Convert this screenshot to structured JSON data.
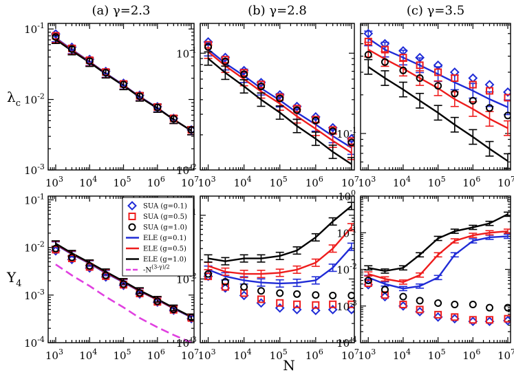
{
  "figure": {
    "x_label": "N",
    "row_labels": [
      {
        "main": "λ",
        "sub": "c"
      },
      {
        "main": "Y",
        "sub": "4"
      }
    ]
  },
  "colors": {
    "SUA (g=0.1)": "#1f2bd6",
    "SUA (g=0.5)": "#ee1c1c",
    "SUA (g=1.0)": "#000000",
    "ELE (g=0.1)": "#1f2bd6",
    "ELE (g=0.5)": "#ee1c1c",
    "ELE (g=1.0)": "#000000",
    "ref": "#e040e0"
  },
  "legend": [
    {
      "label": "SUA (g=0.1)",
      "kind": "diamond"
    },
    {
      "label": "SUA (g=0.5)",
      "kind": "square"
    },
    {
      "label": "SUA (g=1.0)",
      "kind": "circle"
    },
    {
      "label": "ELE (g=0.1)",
      "kind": "line"
    },
    {
      "label": "ELE (g=0.5)",
      "kind": "line"
    },
    {
      "label": "ELE (g=1.0)",
      "kind": "line"
    },
    {
      "label": "-N^{(3-γ)/2}",
      "kind": "dashed"
    }
  ],
  "chart_data": [
    {
      "id": "a-top",
      "type": "line",
      "title": "(a) γ=2.3",
      "xscale": "log",
      "yscale": "log",
      "xlim": [
        600,
        12000000
      ],
      "ylim": [
        0.001,
        0.12
      ],
      "xticks": [
        {
          "b": "10",
          "e": "3"
        },
        {
          "b": "10",
          "e": "4"
        },
        {
          "b": "10",
          "e": "5"
        },
        {
          "b": "10",
          "e": "6"
        },
        {
          "b": "10",
          "e": "7"
        }
      ],
      "yticks": [
        {
          "b": "10",
          "e": "-1"
        },
        {
          "b": "10",
          "e": "-2"
        },
        {
          "b": "10",
          "e": "-3"
        }
      ],
      "x": [
        1000,
        3000,
        10000,
        30000,
        100000,
        300000,
        1000000,
        3000000,
        10000000
      ],
      "series": [
        {
          "name": "SUA (g=0.1)",
          "marker": "diamond",
          "values": [
            0.085,
            0.055,
            0.037,
            0.025,
            0.017,
            0.0115,
            0.0079,
            0.0054,
            0.0037
          ]
        },
        {
          "name": "SUA (g=0.5)",
          "marker": "square",
          "values": [
            0.08,
            0.053,
            0.036,
            0.0245,
            0.0166,
            0.0113,
            0.0078,
            0.0054,
            0.0037
          ]
        },
        {
          "name": "SUA (g=1.0)",
          "marker": "circle",
          "values": [
            0.077,
            0.052,
            0.035,
            0.024,
            0.0163,
            0.0111,
            0.0077,
            0.0053,
            0.0037
          ]
        },
        {
          "name": "ELE (g=0.1)",
          "line": "solid",
          "values": [
            0.075,
            0.051,
            0.0345,
            0.0235,
            0.016,
            0.011,
            0.0076,
            0.0052,
            0.0036
          ]
        },
        {
          "name": "ELE (g=0.5)",
          "line": "solid",
          "values": [
            0.073,
            0.05,
            0.034,
            0.0232,
            0.0158,
            0.0109,
            0.0075,
            0.0052,
            0.0036
          ]
        },
        {
          "name": "ELE (g=1.0)",
          "line": "solid",
          "values": [
            0.071,
            0.049,
            0.0335,
            0.023,
            0.0157,
            0.0108,
            0.0075,
            0.0052,
            0.0036
          ]
        }
      ]
    },
    {
      "id": "b-top",
      "type": "line",
      "title": "(b) γ=2.8",
      "xscale": "log",
      "yscale": "log",
      "xlim": [
        600,
        12000000
      ],
      "ylim": [
        0.01,
        0.18
      ],
      "xticks": [
        {
          "b": "10",
          "e": "3"
        },
        {
          "b": "10",
          "e": "4"
        },
        {
          "b": "10",
          "e": "5"
        },
        {
          "b": "10",
          "e": "6"
        },
        {
          "b": "10",
          "e": "7"
        }
      ],
      "yticks": [
        {
          "b": "10",
          "e": "-1"
        },
        {
          "b": "10",
          "e": "-2"
        }
      ],
      "x": [
        1000,
        3000,
        10000,
        30000,
        100000,
        300000,
        1000000,
        3000000,
        10000000
      ],
      "series": [
        {
          "name": "SUA (g=0.1)",
          "marker": "diamond",
          "values": [
            0.125,
            0.092,
            0.071,
            0.056,
            0.044,
            0.035,
            0.0285,
            0.023,
            0.0185
          ]
        },
        {
          "name": "SUA (g=0.5)",
          "marker": "square",
          "values": [
            0.118,
            0.088,
            0.068,
            0.054,
            0.042,
            0.0335,
            0.027,
            0.022,
            0.0177
          ]
        },
        {
          "name": "SUA (g=1.0)",
          "marker": "circle",
          "values": [
            0.113,
            0.085,
            0.066,
            0.052,
            0.041,
            0.0325,
            0.0265,
            0.0215,
            0.0172
          ]
        },
        {
          "name": "ELE (g=0.1)",
          "line": "solid",
          "values": [
            0.108,
            0.082,
            0.064,
            0.05,
            0.0395,
            0.031,
            0.0245,
            0.0195,
            0.0155
          ]
        },
        {
          "name": "ELE (g=0.5)",
          "line": "solid",
          "values": [
            0.103,
            0.078,
            0.06,
            0.047,
            0.037,
            0.0288,
            0.0225,
            0.0178,
            0.014
          ]
        },
        {
          "name": "ELE (g=1.0)",
          "line": "solid",
          "values": [
            0.09,
            0.068,
            0.052,
            0.04,
            0.031,
            0.0238,
            0.0185,
            0.0143,
            0.0112
          ]
        }
      ]
    },
    {
      "id": "c-top",
      "type": "line",
      "title": "(c) γ=3.5",
      "xscale": "log",
      "yscale": "log",
      "xlim": [
        600,
        12000000
      ],
      "ylim": [
        0.052,
        0.72
      ],
      "xticks": [
        {
          "b": "10",
          "e": "3"
        },
        {
          "b": "10",
          "e": "4"
        },
        {
          "b": "10",
          "e": "5"
        },
        {
          "b": "10",
          "e": "6"
        },
        {
          "b": "10",
          "e": "7"
        }
      ],
      "yticks": [
        {
          "b": "10",
          "e": "-1"
        }
      ],
      "x": [
        1000,
        3000,
        10000,
        30000,
        100000,
        300000,
        1000000,
        3000000,
        10000000
      ],
      "series": [
        {
          "name": "SUA (g=0.1)",
          "marker": "diamond",
          "values": [
            0.6,
            0.5,
            0.44,
            0.39,
            0.34,
            0.3,
            0.27,
            0.24,
            0.21
          ]
        },
        {
          "name": "SUA (g=0.5)",
          "marker": "square",
          "values": [
            0.52,
            0.45,
            0.39,
            0.34,
            0.3,
            0.27,
            0.24,
            0.215,
            0.19
          ]
        },
        {
          "name": "SUA (g=1.0)",
          "marker": "circle",
          "values": [
            0.41,
            0.36,
            0.31,
            0.27,
            0.235,
            0.205,
            0.18,
            0.158,
            0.138
          ]
        },
        {
          "name": "ELE (g=0.1)",
          "line": "solid",
          "values": [
            0.55,
            0.45,
            0.39,
            0.34,
            0.29,
            0.25,
            0.215,
            0.185,
            0.16
          ]
        },
        {
          "name": "ELE (g=0.5)",
          "line": "solid",
          "values": [
            0.45,
            0.38,
            0.32,
            0.27,
            0.225,
            0.185,
            0.155,
            0.13,
            0.11
          ]
        },
        {
          "name": "ELE (g=1.0)",
          "line": "solid",
          "values": [
            0.33,
            0.27,
            0.22,
            0.18,
            0.145,
            0.117,
            0.094,
            0.076,
            0.061
          ]
        }
      ]
    },
    {
      "id": "a-bottom",
      "type": "line",
      "title": "",
      "xscale": "log",
      "yscale": "log",
      "xlim": [
        600,
        12000000
      ],
      "ylim": [
        0.0001,
        0.12
      ],
      "xticks": [
        {
          "b": "10",
          "e": "3"
        },
        {
          "b": "10",
          "e": "4"
        },
        {
          "b": "10",
          "e": "5"
        },
        {
          "b": "10",
          "e": "6"
        },
        {
          "b": "10",
          "e": "7"
        }
      ],
      "yticks": [
        {
          "b": "10",
          "e": "-1"
        },
        {
          "b": "10",
          "e": "-2"
        },
        {
          "b": "10",
          "e": "-3"
        },
        {
          "b": "10",
          "e": "-4"
        }
      ],
      "x": [
        1000,
        3000,
        10000,
        30000,
        100000,
        300000,
        1000000,
        3000000,
        10000000
      ],
      "series": [
        {
          "name": "SUA (g=0.1)",
          "marker": "diamond",
          "values": [
            0.0085,
            0.0056,
            0.0037,
            0.0024,
            0.0016,
            0.00105,
            0.00071,
            0.00048,
            0.00032
          ]
        },
        {
          "name": "SUA (g=0.5)",
          "marker": "square",
          "values": [
            0.009,
            0.0059,
            0.0039,
            0.0025,
            0.00165,
            0.00108,
            0.00072,
            0.00049,
            0.00033
          ]
        },
        {
          "name": "SUA (g=1.0)",
          "marker": "circle",
          "values": [
            0.0095,
            0.0062,
            0.0041,
            0.0026,
            0.0017,
            0.00111,
            0.00074,
            0.0005,
            0.00034
          ]
        },
        {
          "name": "ELE (g=0.1)",
          "line": "solid",
          "values": [
            0.0115,
            0.0072,
            0.0046,
            0.0029,
            0.00185,
            0.0012,
            0.00079,
            0.00052,
            0.00034
          ]
        },
        {
          "name": "ELE (g=0.5)",
          "line": "solid",
          "values": [
            0.0118,
            0.0074,
            0.0047,
            0.003,
            0.0019,
            0.00122,
            0.0008,
            0.00053,
            0.00035
          ]
        },
        {
          "name": "ELE (g=1.0)",
          "line": "solid",
          "values": [
            0.0121,
            0.0076,
            0.0048,
            0.0031,
            0.00195,
            0.00125,
            0.00082,
            0.00054,
            0.00035
          ]
        },
        {
          "name": "ref",
          "line": "dashed",
          "values": [
            0.0044,
            0.0026,
            0.00155,
            0.00092,
            0.00055,
            0.00033,
            0.00021,
            0.000145,
            0.0001
          ]
        }
      ]
    },
    {
      "id": "b-bottom",
      "type": "line",
      "title": "",
      "xscale": "log",
      "yscale": "log",
      "xlim": [
        600,
        12000000
      ],
      "ylim": [
        0.001,
        0.2
      ],
      "xticks": [
        {
          "b": "10",
          "e": "3"
        },
        {
          "b": "10",
          "e": "4"
        },
        {
          "b": "10",
          "e": "5"
        },
        {
          "b": "10",
          "e": "6"
        },
        {
          "b": "10",
          "e": "7"
        }
      ],
      "yticks": [
        {
          "b": "10",
          "e": "-1"
        },
        {
          "b": "10",
          "e": "-2"
        },
        {
          "b": "10",
          "e": "-3"
        }
      ],
      "x": [
        1000,
        3000,
        10000,
        30000,
        100000,
        300000,
        1000000,
        3000000,
        10000000
      ],
      "series": [
        {
          "name": "SUA (g=0.1)",
          "marker": "diamond",
          "values": [
            0.011,
            0.0072,
            0.0055,
            0.0042,
            0.0035,
            0.0033,
            0.0032,
            0.0033,
            0.0033
          ]
        },
        {
          "name": "SUA (g=0.5)",
          "marker": "square",
          "values": [
            0.011,
            0.0075,
            0.006,
            0.0048,
            0.0042,
            0.004,
            0.0039,
            0.004,
            0.004
          ]
        },
        {
          "name": "SUA (g=1.0)",
          "marker": "circle",
          "values": [
            0.012,
            0.009,
            0.0075,
            0.0065,
            0.006,
            0.0058,
            0.0056,
            0.0055,
            0.0055
          ]
        },
        {
          "name": "ELE (g=0.1)",
          "line": "solid",
          "values": [
            0.014,
            0.011,
            0.0095,
            0.0088,
            0.0085,
            0.0087,
            0.0095,
            0.015,
            0.032
          ]
        },
        {
          "name": "ELE (g=0.5)",
          "line": "solid",
          "values": [
            0.016,
            0.013,
            0.012,
            0.012,
            0.0125,
            0.014,
            0.018,
            0.03,
            0.065
          ]
        },
        {
          "name": "ELE (g=1.0)",
          "line": "solid",
          "values": [
            0.021,
            0.019,
            0.021,
            0.021,
            0.023,
            0.028,
            0.045,
            0.08,
            0.14
          ]
        }
      ]
    },
    {
      "id": "c-bottom",
      "type": "line",
      "title": "",
      "xscale": "log",
      "yscale": "log",
      "xlim": [
        600,
        12000000
      ],
      "ylim": [
        0.0001,
        1
      ],
      "xticks": [
        {
          "b": "10",
          "e": "3"
        },
        {
          "b": "10",
          "e": "4"
        },
        {
          "b": "10",
          "e": "5"
        },
        {
          "b": "10",
          "e": "6"
        },
        {
          "b": "10",
          "e": "7"
        }
      ],
      "yticks": [
        {
          "b": "10",
          "e": "0"
        },
        {
          "b": "10",
          "e": "-1"
        },
        {
          "b": "10",
          "e": "-2"
        },
        {
          "b": "10",
          "e": "-3"
        },
        {
          "b": "10",
          "e": "-4"
        }
      ],
      "x": [
        1000,
        3000,
        10000,
        30000,
        100000,
        300000,
        1000000,
        3000000,
        10000000
      ],
      "series": [
        {
          "name": "SUA (g=0.1)",
          "marker": "diamond",
          "values": [
            0.0038,
            0.0018,
            0.001,
            0.0007,
            0.0005,
            0.00045,
            0.00038,
            0.00038,
            0.0004
          ]
        },
        {
          "name": "SUA (g=0.5)",
          "marker": "square",
          "values": [
            0.0042,
            0.002,
            0.0011,
            0.0008,
            0.00058,
            0.0005,
            0.00042,
            0.00042,
            0.00045
          ]
        },
        {
          "name": "SUA (g=1.0)",
          "marker": "circle",
          "values": [
            0.005,
            0.0028,
            0.0018,
            0.0014,
            0.0012,
            0.0011,
            0.0011,
            0.0009,
            0.0009
          ]
        },
        {
          "name": "ELE (g=0.1)",
          "line": "solid",
          "values": [
            0.006,
            0.004,
            0.003,
            0.0035,
            0.006,
            0.025,
            0.06,
            0.075,
            0.08
          ]
        },
        {
          "name": "ELE (g=0.5)",
          "line": "solid",
          "values": [
            0.0075,
            0.0055,
            0.0045,
            0.007,
            0.025,
            0.06,
            0.085,
            0.1,
            0.11
          ]
        },
        {
          "name": "ELE (g=1.0)",
          "line": "solid",
          "values": [
            0.011,
            0.009,
            0.011,
            0.025,
            0.07,
            0.11,
            0.14,
            0.18,
            0.32
          ]
        }
      ]
    }
  ]
}
